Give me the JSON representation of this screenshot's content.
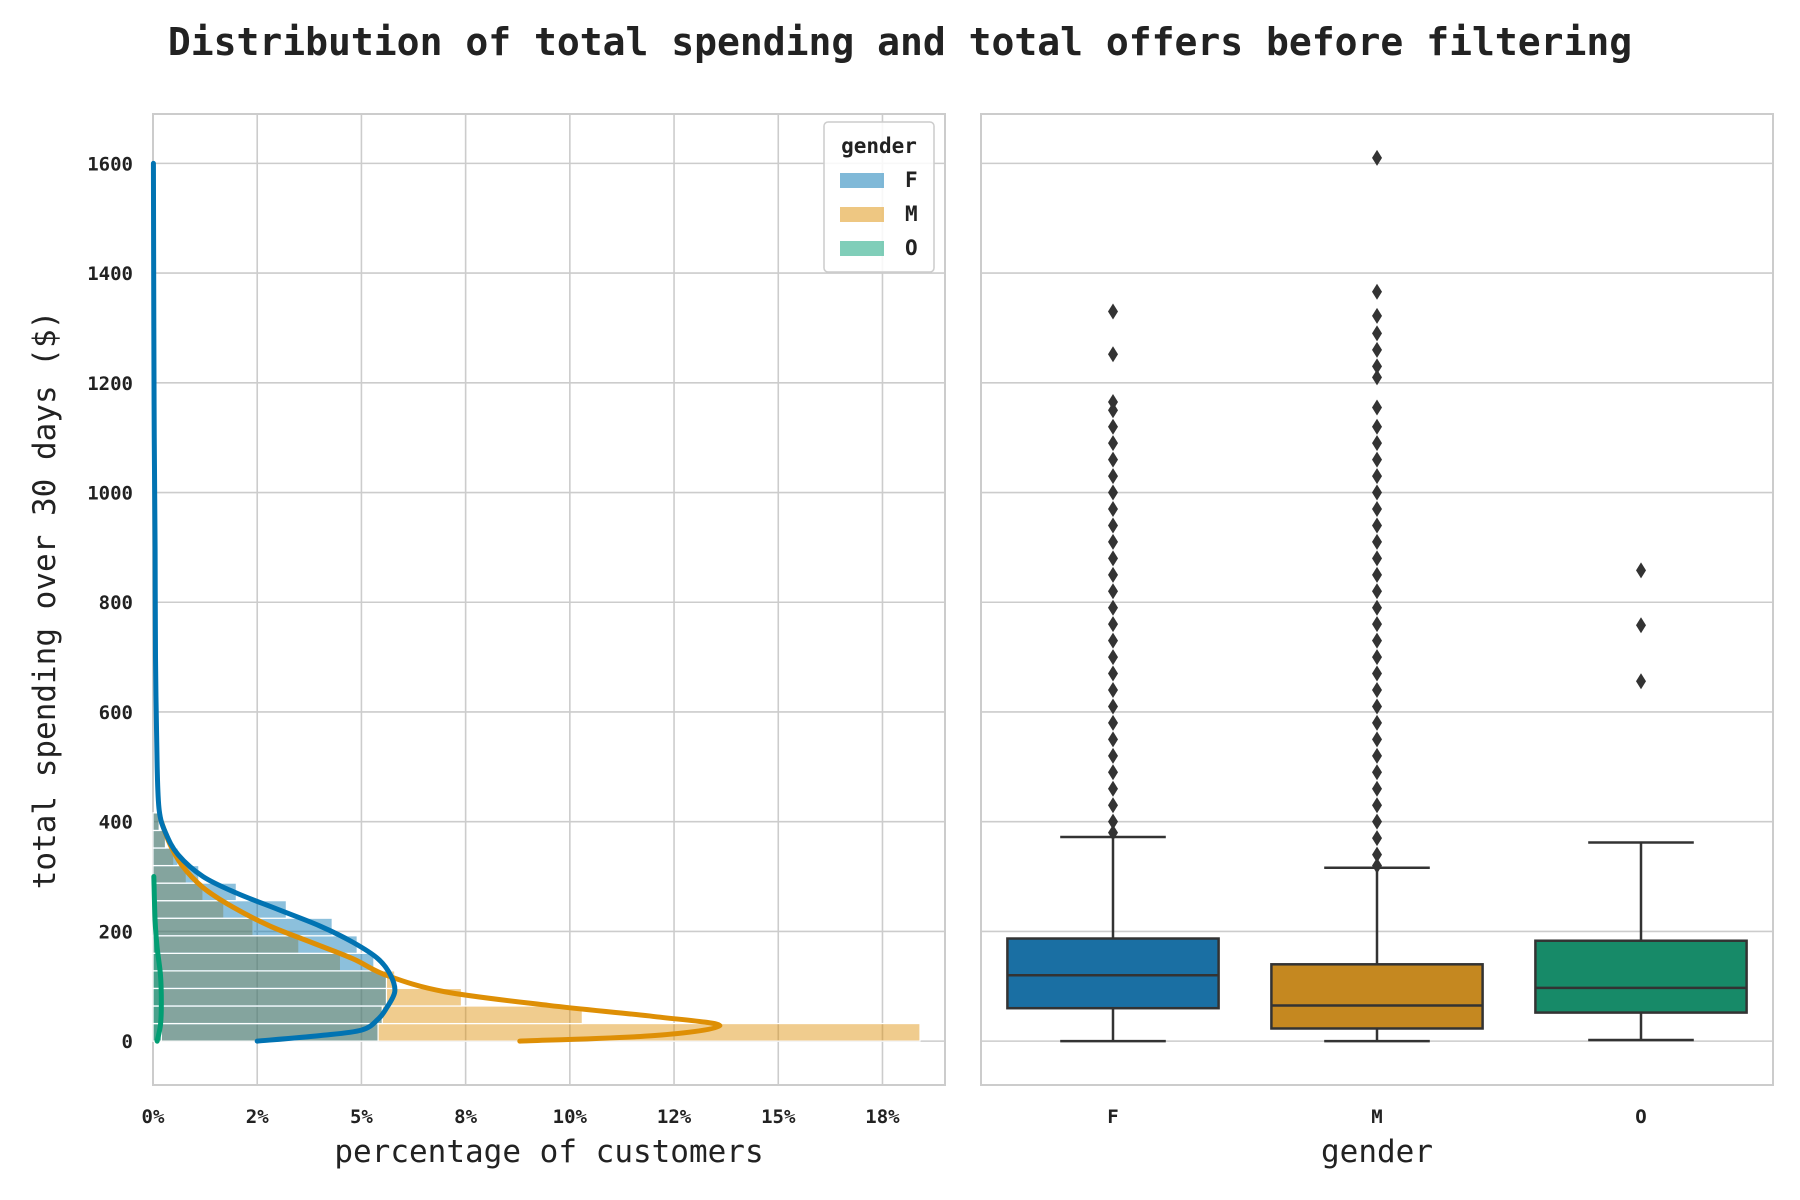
{
  "title": "Distribution of total spending and total offers before filtering",
  "chart_data": [
    {
      "type": "histogram",
      "orientation": "horizontal",
      "ylabel": "total spending over 30 days ($)",
      "xlabel": "percentage of customers",
      "ylim": [
        -80,
        1690
      ],
      "y_ticks": [
        0,
        200,
        400,
        600,
        800,
        1000,
        1200,
        1400,
        1600
      ],
      "xlim": [
        0,
        19
      ],
      "x_ticks": [
        0,
        2.5,
        5,
        7.5,
        10,
        12.5,
        15,
        17.5
      ],
      "x_tick_labels": [
        "0%",
        "2%",
        "5%",
        "8%",
        "10%",
        "12%",
        "15%",
        "18%"
      ],
      "grid": true,
      "legend": {
        "title": "gender",
        "placement": "top-right",
        "entries": [
          {
            "label": "F",
            "color": "#0173b2"
          },
          {
            "label": "M",
            "color": "#de8f05"
          },
          {
            "label": "O",
            "color": "#029e73"
          }
        ]
      },
      "bin_width": 32,
      "series": [
        {
          "name": "F",
          "color": "#0173b2",
          "bins": [
            [
              0,
              5.4
            ],
            [
              32,
              5.5
            ],
            [
              64,
              5.6
            ],
            [
              96,
              5.6
            ],
            [
              128,
              5.3
            ],
            [
              160,
              4.9
            ],
            [
              192,
              4.3
            ],
            [
              224,
              3.2
            ],
            [
              256,
              2.0
            ],
            [
              288,
              1.1
            ],
            [
              320,
              0.6
            ],
            [
              352,
              0.3
            ],
            [
              384,
              0.15
            ]
          ],
          "kde": [
            [
              2.5,
              0
            ],
            [
              4.0,
              10
            ],
            [
              5.0,
              20
            ],
            [
              5.4,
              40
            ],
            [
              5.6,
              60
            ],
            [
              5.8,
              90
            ],
            [
              5.7,
              120
            ],
            [
              5.4,
              150
            ],
            [
              4.8,
              180
            ],
            [
              4.0,
              210
            ],
            [
              3.0,
              240
            ],
            [
              2.0,
              270
            ],
            [
              1.2,
              300
            ],
            [
              0.6,
              340
            ],
            [
              0.3,
              380
            ],
            [
              0.15,
              420
            ],
            [
              0.1,
              500
            ],
            [
              0.06,
              700
            ],
            [
              0.05,
              900
            ],
            [
              0.03,
              1100
            ],
            [
              0.02,
              1300
            ],
            [
              0.01,
              1600
            ]
          ]
        },
        {
          "name": "M",
          "color": "#de8f05",
          "bins": [
            [
              0,
              18.4
            ],
            [
              32,
              10.3
            ],
            [
              64,
              7.4
            ],
            [
              96,
              5.8
            ],
            [
              128,
              4.5
            ],
            [
              160,
              3.5
            ],
            [
              192,
              2.4
            ],
            [
              224,
              1.7
            ],
            [
              256,
              1.2
            ],
            [
              288,
              0.8
            ],
            [
              320,
              0.5
            ],
            [
              352,
              0.3
            ],
            [
              384,
              0.15
            ]
          ],
          "kde": [
            [
              8.8,
              0
            ],
            [
              12.0,
              10
            ],
            [
              13.6,
              28
            ],
            [
              12.0,
              45
            ],
            [
              9.5,
              65
            ],
            [
              7.0,
              90
            ],
            [
              5.6,
              120
            ],
            [
              4.8,
              150
            ],
            [
              3.8,
              180
            ],
            [
              2.8,
              210
            ],
            [
              1.9,
              245
            ],
            [
              1.2,
              280
            ],
            [
              0.7,
              320
            ],
            [
              0.4,
              360
            ],
            [
              0.2,
              400
            ]
          ]
        },
        {
          "name": "O",
          "color": "#029e73",
          "bins": [
            [
              0,
              0.2
            ],
            [
              32,
              0.2
            ],
            [
              64,
              0.2
            ],
            [
              96,
              0.2
            ],
            [
              128,
              0.15
            ],
            [
              160,
              0.12
            ]
          ],
          "kde": [
            [
              0.1,
              0
            ],
            [
              0.18,
              30
            ],
            [
              0.2,
              70
            ],
            [
              0.18,
              120
            ],
            [
              0.1,
              170
            ],
            [
              0.05,
              220
            ],
            [
              0.02,
              300
            ]
          ]
        }
      ]
    },
    {
      "type": "box",
      "xlabel": "gender",
      "categories": [
        "F",
        "M",
        "O"
      ],
      "ylim": [
        -80,
        1690
      ],
      "grid": true,
      "series": [
        {
          "name": "F",
          "color": "#1a6fa3",
          "whisker_low": 0,
          "q1": 60,
          "median": 120,
          "q3": 187,
          "whisker_high": 372,
          "outliers": [
            1330,
            1252,
            1165,
            1150,
            1120,
            1090,
            1060,
            1030,
            1000,
            970,
            940,
            910,
            880,
            850,
            820,
            790,
            760,
            730,
            700,
            670,
            640,
            610,
            580,
            550,
            520,
            490,
            460,
            430,
            400,
            380
          ]
        },
        {
          "name": "M",
          "color": "#c58820",
          "whisker_low": 0,
          "q1": 23,
          "median": 65,
          "q3": 140,
          "whisker_high": 316,
          "outliers": [
            1610,
            1366,
            1322,
            1290,
            1260,
            1230,
            1210,
            1155,
            1120,
            1090,
            1060,
            1030,
            1000,
            970,
            940,
            910,
            880,
            850,
            820,
            790,
            760,
            730,
            700,
            670,
            640,
            610,
            580,
            550,
            520,
            490,
            460,
            430,
            400,
            370,
            340,
            320
          ]
        },
        {
          "name": "O",
          "color": "#178a68",
          "whisker_low": 2,
          "q1": 52,
          "median": 97,
          "q3": 183,
          "whisker_high": 362,
          "outliers": [
            858,
            758,
            656
          ]
        }
      ]
    }
  ]
}
